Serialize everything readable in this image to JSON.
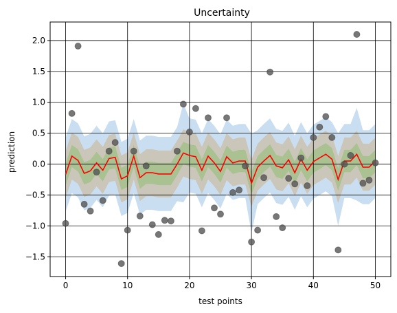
{
  "chart_data": {
    "type": "line",
    "title": "Uncertainty",
    "xlabel": "test points",
    "ylabel": "prediction",
    "xlim": [
      -2.5,
      52.5
    ],
    "ylim": [
      -1.82,
      2.3
    ],
    "xticks": [
      0,
      10,
      20,
      30,
      40,
      50
    ],
    "xtick_labels": [
      "0",
      "10",
      "20",
      "30",
      "40",
      "50"
    ],
    "yticks": [
      -1.5,
      -1.0,
      -0.5,
      0.0,
      0.5,
      1.0,
      1.5,
      2.0
    ],
    "ytick_labels": [
      "−1.5",
      "−1.0",
      "−0.5",
      "0.0",
      "0.5",
      "1.0",
      "1.5",
      "2.0"
    ],
    "grid": true,
    "x": [
      0,
      1,
      2,
      3,
      4,
      5,
      6,
      7,
      8,
      9,
      10,
      11,
      12,
      13,
      14,
      15,
      16,
      17,
      18,
      19,
      20,
      21,
      22,
      23,
      24,
      25,
      26,
      27,
      28,
      29,
      30,
      31,
      32,
      33,
      34,
      35,
      36,
      37,
      38,
      39,
      40,
      41,
      42,
      43,
      44,
      45,
      46,
      47,
      48,
      49,
      50
    ],
    "series": [
      {
        "role": "mean",
        "color": "#ff0000",
        "values": [
          -0.17,
          0.13,
          0.06,
          -0.15,
          -0.11,
          0.02,
          -0.1,
          0.09,
          0.11,
          -0.24,
          -0.19,
          0.13,
          -0.22,
          -0.14,
          -0.14,
          -0.16,
          -0.16,
          -0.16,
          0.0,
          0.18,
          0.14,
          0.12,
          -0.1,
          0.13,
          0.02,
          -0.12,
          0.12,
          0.02,
          0.05,
          0.05,
          -0.31,
          -0.05,
          0.05,
          0.14,
          -0.03,
          -0.06,
          0.07,
          -0.14,
          0.08,
          -0.1,
          0.04,
          0.1,
          0.16,
          0.08,
          -0.25,
          0.05,
          0.05,
          0.16,
          -0.05,
          -0.05,
          0.05
        ]
      },
      {
        "role": "observations",
        "color": "#555555",
        "values": [
          -0.96,
          0.82,
          1.91,
          -0.65,
          -0.76,
          -0.13,
          -0.59,
          0.21,
          0.35,
          -1.61,
          -1.07,
          0.21,
          -0.84,
          -0.03,
          -0.98,
          -1.14,
          -0.91,
          -0.92,
          0.21,
          0.97,
          0.52,
          0.9,
          -1.08,
          0.75,
          -0.71,
          -0.81,
          0.75,
          -0.46,
          -0.42,
          -0.03,
          -1.26,
          -1.07,
          -0.22,
          1.49,
          -0.85,
          -1.03,
          -0.23,
          -0.32,
          0.1,
          -0.35,
          0.43,
          0.6,
          0.77,
          0.43,
          -1.39,
          0.0,
          0.14,
          2.1,
          -0.31,
          -0.26,
          0.02
        ]
      }
    ],
    "bands": [
      {
        "sigma": 3,
        "color": "#a6c8e8",
        "opacity": 0.6,
        "half_width": 0.6,
        "half_width_outliers": {
          "19": 0.8,
          "30": 0.8,
          "44": 0.75,
          "47": 0.75
        }
      },
      {
        "sigma": 2,
        "color": "#cba877",
        "opacity": 0.45,
        "half_width": 0.38
      },
      {
        "sigma": 1,
        "color": "#8fbf70",
        "opacity": 0.55,
        "half_width": 0.18
      }
    ]
  }
}
